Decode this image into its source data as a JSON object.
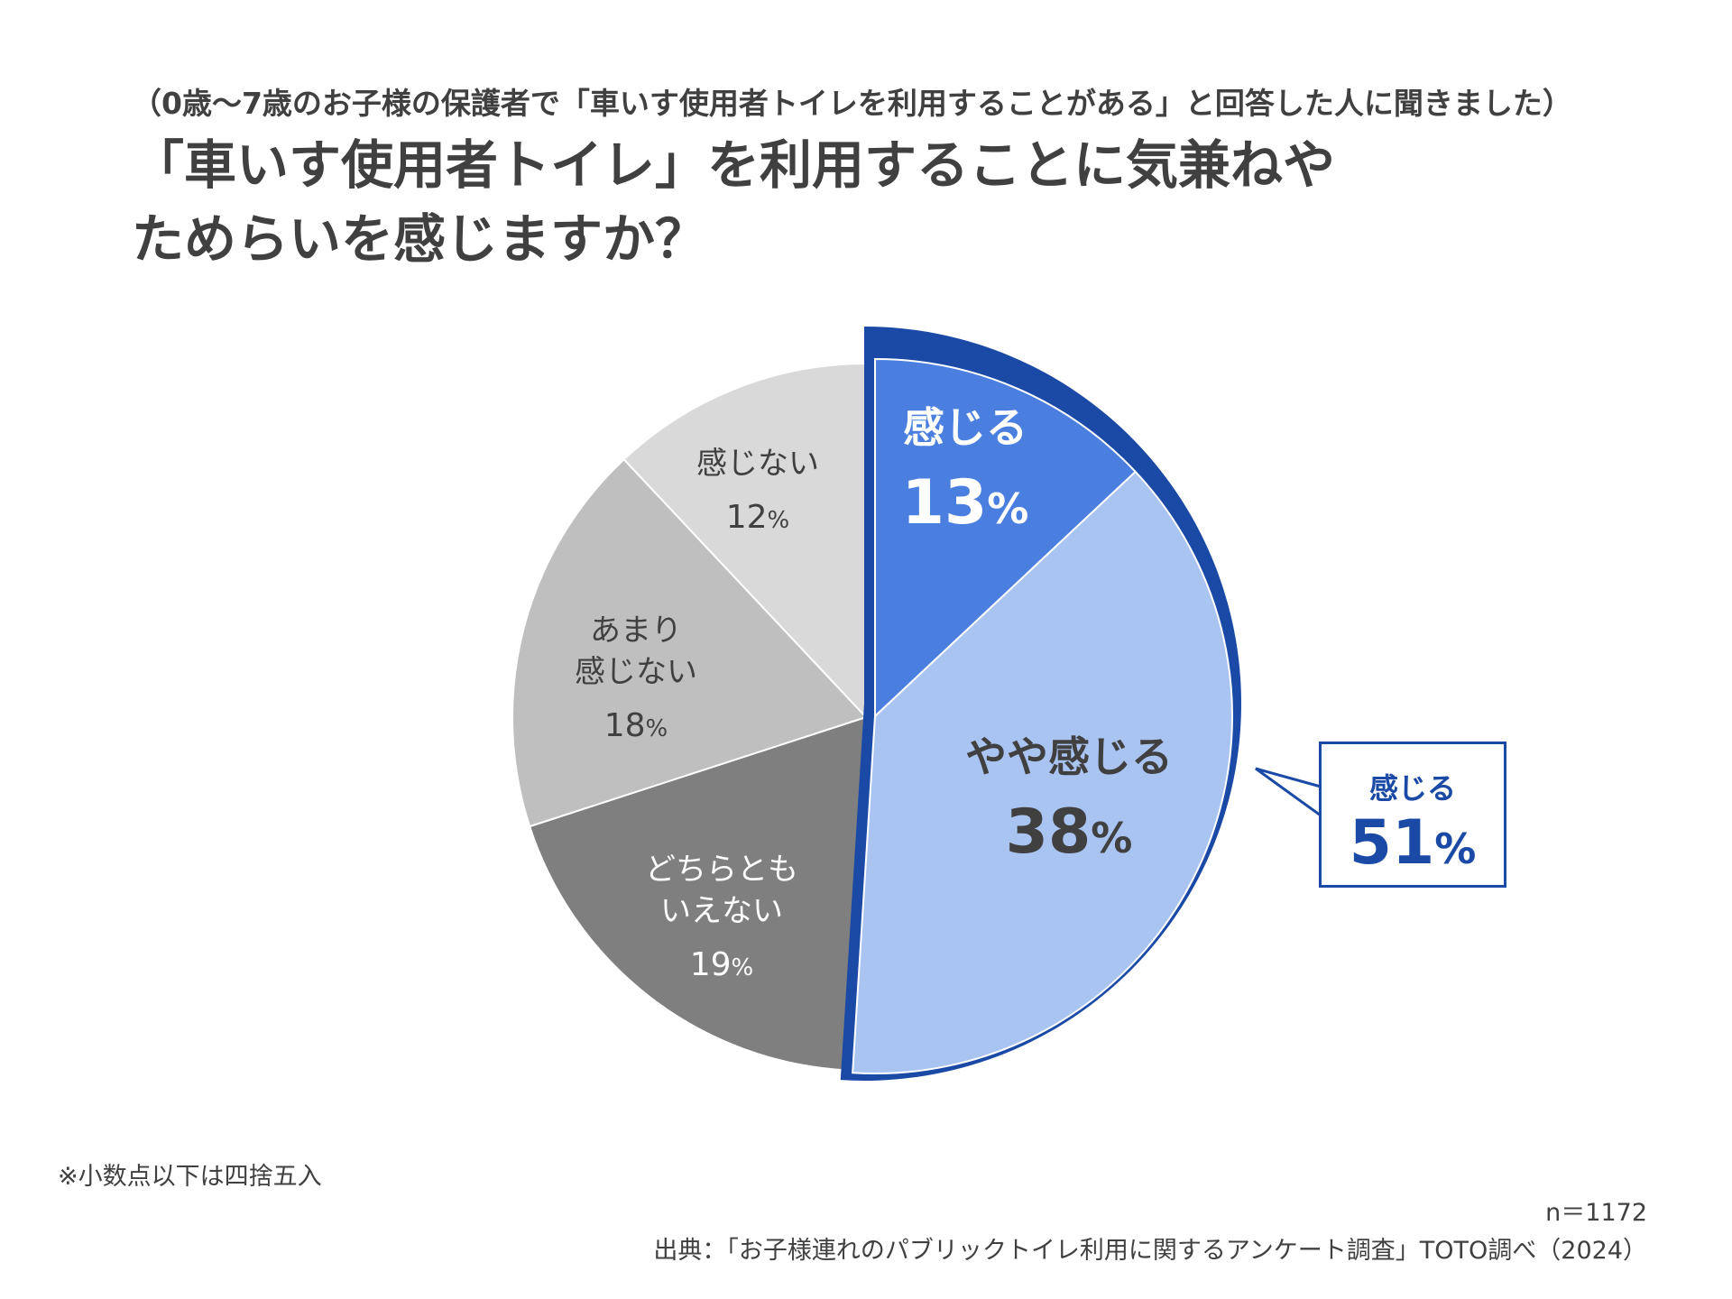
{
  "header": {
    "subtitle": "（0歳～7歳のお子様の保護者で「車いす使用者トイレを利用することがある」と回答した人に聞きました）",
    "title_line1": "「車いす使用者トイレ」を利用することに気兼ねや",
    "title_line2": "ためらいを感じますか？"
  },
  "chart_data": {
    "type": "pie",
    "start_angle_deg": 0,
    "direction": "clockwise",
    "slices": [
      {
        "label_lines": [
          "感じる"
        ],
        "value": 13,
        "display": "13",
        "unit": "%",
        "color": "#4a7fe0",
        "text_color": "#ffffff",
        "bold": true,
        "highlight": true
      },
      {
        "label_lines": [
          "やや感じる"
        ],
        "value": 38,
        "display": "38",
        "unit": "%",
        "color": "#aac4f2",
        "text_color": "#404040",
        "bold": true,
        "highlight": true
      },
      {
        "label_lines": [
          "どちらとも",
          "いえない"
        ],
        "value": 19,
        "display": "19",
        "unit": "%",
        "color": "#7f7f7f",
        "text_color": "#ffffff",
        "bold": false,
        "highlight": false
      },
      {
        "label_lines": [
          "あまり",
          "感じない"
        ],
        "value": 18,
        "display": "18",
        "unit": "%",
        "color": "#bfbfbf",
        "text_color": "#404040",
        "bold": false,
        "highlight": false
      },
      {
        "label_lines": [
          "感じない"
        ],
        "value": 12,
        "display": "12",
        "unit": "%",
        "color": "#d9d9d9",
        "text_color": "#404040",
        "bold": false,
        "highlight": false
      }
    ],
    "highlight_outline_color": "#1a4aa6",
    "callout": {
      "label": "感じる",
      "value": "51",
      "unit": "%"
    }
  },
  "footer": {
    "note": "※小数点以下は四捨五入",
    "sample_size": "n＝1172",
    "source": "出典：「お子様連れのパブリックトイレ利用に関するアンケート調査」TOTO調べ（2024）"
  }
}
